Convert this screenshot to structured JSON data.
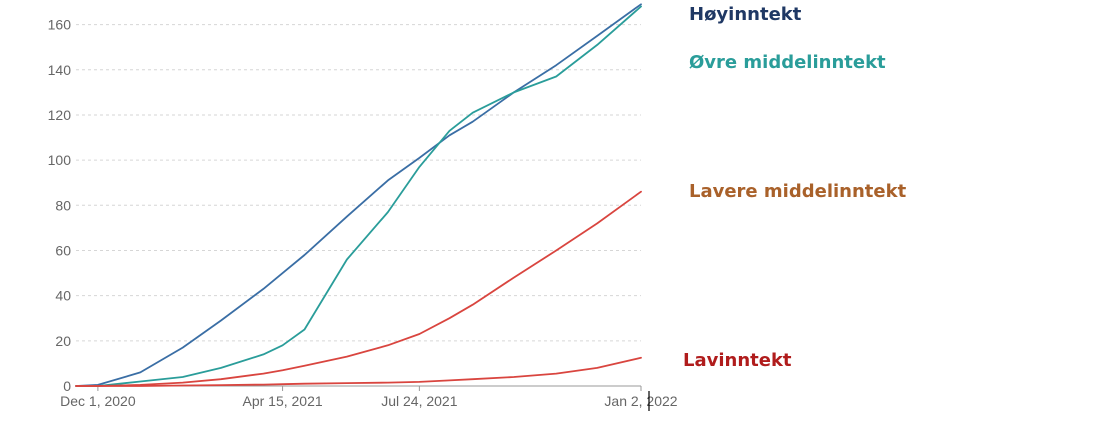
{
  "chart_data": {
    "type": "line",
    "title": "",
    "xlabel": "",
    "ylabel": "",
    "x_ticks": [
      "Dec 1, 2020",
      "Apr 15, 2021",
      "Jul 24, 2021",
      "Jan 2, 2022"
    ],
    "y_ticks": [
      0,
      20,
      40,
      60,
      80,
      100,
      120,
      140,
      160
    ],
    "xlim": [
      "2020-11-15",
      "2022-01-02"
    ],
    "ylim": [
      0,
      170
    ],
    "grid": "horizontal dashed",
    "x": [
      "2020-11-15",
      "2020-12-01",
      "2021-01-01",
      "2021-02-01",
      "2021-03-01",
      "2021-04-01",
      "2021-04-15",
      "2021-05-01",
      "2021-06-01",
      "2021-07-01",
      "2021-07-24",
      "2021-08-15",
      "2021-09-01",
      "2021-10-01",
      "2021-11-01",
      "2021-12-01",
      "2022-01-02"
    ],
    "series": [
      {
        "name": "Høyinntekt",
        "color": "#3a6ea5",
        "values": [
          0,
          0.5,
          6,
          17,
          29,
          43,
          50,
          58,
          75,
          91,
          101,
          111,
          117,
          130,
          142,
          155,
          169
        ]
      },
      {
        "name": "Øvre middelinntekt",
        "color": "#2a9d9a",
        "values": [
          0,
          0,
          2,
          4,
          8,
          14,
          18,
          25,
          56,
          77,
          97,
          113,
          121,
          130,
          137,
          151,
          168
        ]
      },
      {
        "name": "Lavere middelinntekt",
        "color": "#d9453f",
        "values": [
          0,
          0,
          0.5,
          1.5,
          3,
          5.5,
          7,
          9,
          13,
          18,
          23,
          30,
          36,
          48,
          60,
          72,
          86
        ]
      },
      {
        "name": "Lavinntekt",
        "color": "#d9453f",
        "values": [
          0,
          0,
          0,
          0.2,
          0.4,
          0.6,
          0.8,
          1,
          1.3,
          1.5,
          1.8,
          2.5,
          3,
          4,
          5.5,
          8,
          12.5
        ]
      }
    ]
  },
  "labels": {
    "hoy": {
      "text": "Høyinntekt",
      "color": "#1f3864"
    },
    "ovre": {
      "text": "Øvre middelinntekt",
      "color": "#2a9d9a"
    },
    "lavere": {
      "text": "Lavere middelinntekt",
      "color": "#a9612a"
    },
    "lav": {
      "text": "Lavinntekt",
      "color": "#b01c1c"
    }
  }
}
